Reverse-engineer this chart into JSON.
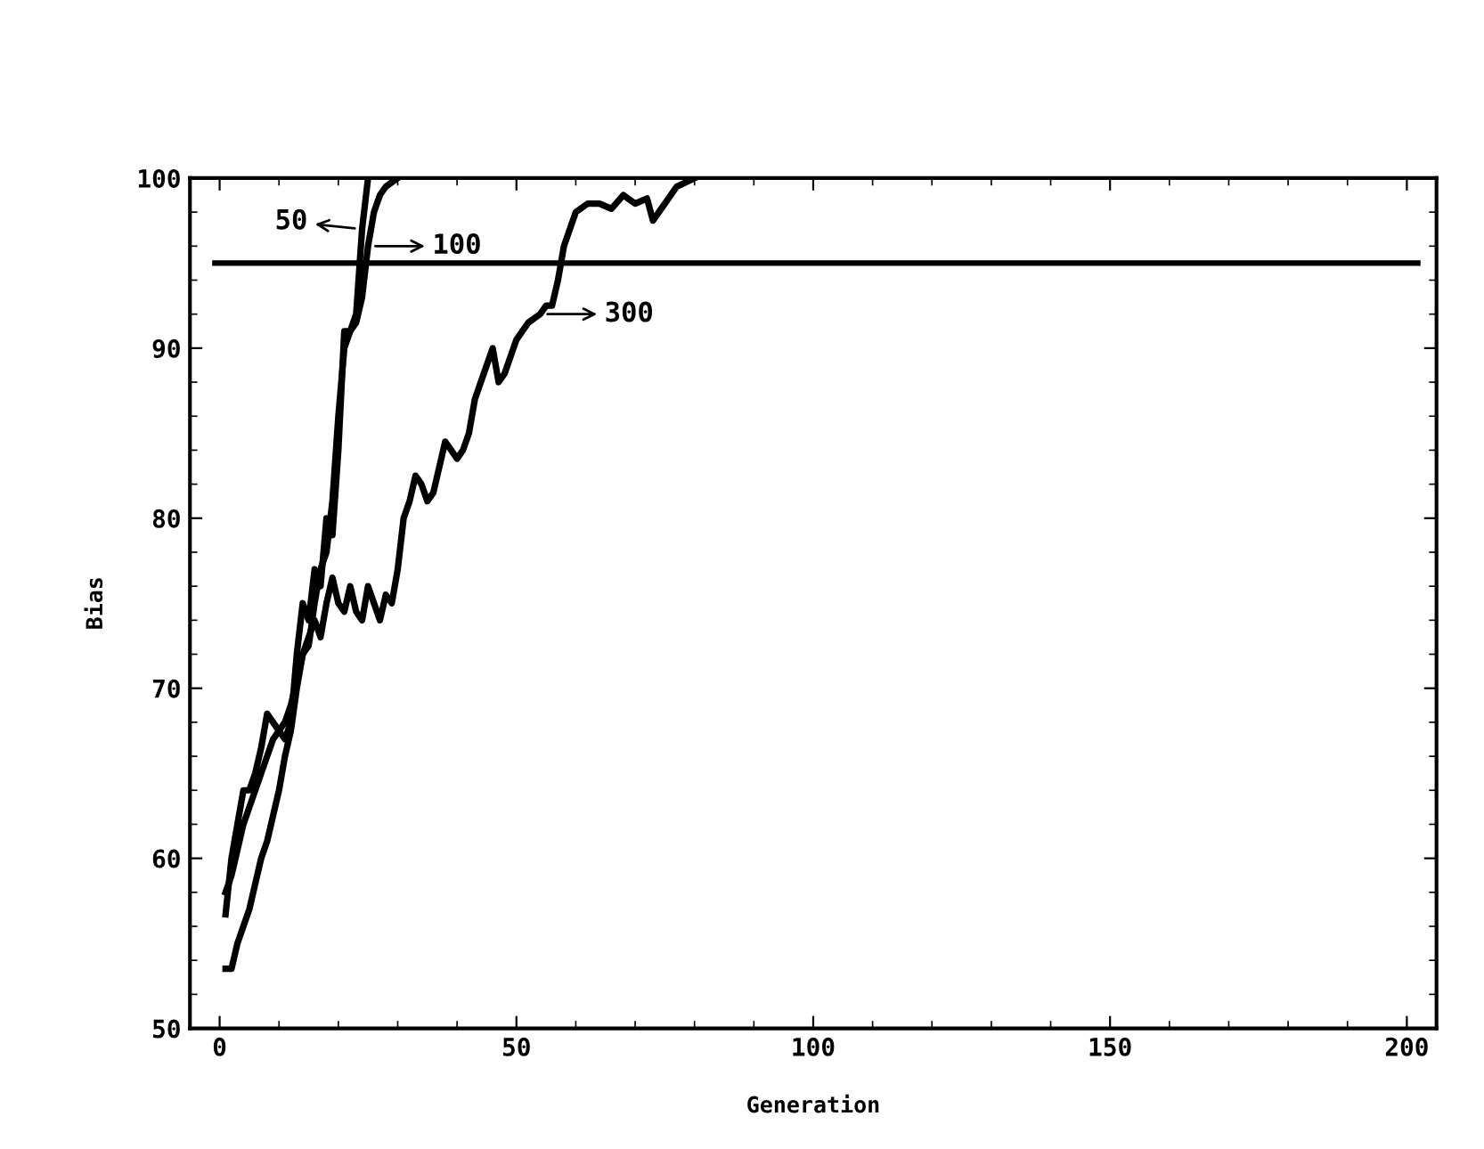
{
  "chart_data": {
    "type": "line",
    "xlabel": "Generation",
    "ylabel": "Bias",
    "xlim": [
      -5,
      205
    ],
    "ylim": [
      50,
      100
    ],
    "xticks": [
      0,
      50,
      100,
      150,
      200
    ],
    "yticks": [
      50,
      60,
      70,
      80,
      90,
      100
    ],
    "grid": false,
    "legend": "top left",
    "marker": "none",
    "line_style": "solid",
    "series": [
      {
        "name": "50",
        "color": "#000000",
        "x": [
          1,
          2,
          3,
          4,
          5,
          6,
          7,
          8,
          9,
          10,
          11,
          12,
          13,
          14,
          15,
          16,
          17,
          18,
          19,
          20,
          21,
          22,
          23,
          24,
          25
        ],
        "values": [
          56.7,
          60,
          62,
          64,
          64,
          65,
          66.5,
          68.5,
          68,
          67.5,
          67,
          68,
          72,
          75,
          74,
          77,
          76,
          80,
          79,
          84,
          91,
          91,
          92,
          97,
          100
        ]
      },
      {
        "name": "100",
        "color": "#000000",
        "x": [
          1,
          2,
          3,
          4,
          5,
          6,
          7,
          8,
          9,
          10,
          11,
          12,
          13,
          14,
          15,
          16,
          17,
          18,
          19,
          20,
          21,
          22,
          23,
          24,
          25,
          26,
          27,
          28,
          30
        ],
        "values": [
          53.5,
          53.5,
          55,
          56,
          57,
          58.5,
          60,
          61,
          62.5,
          64,
          66,
          67.5,
          70,
          72,
          72.5,
          75,
          77,
          78,
          81,
          86,
          90,
          91,
          91.5,
          93,
          96,
          98,
          99,
          99.5,
          100
        ]
      },
      {
        "name": "300",
        "color": "#000000",
        "x": [
          1,
          2,
          3,
          4,
          5,
          6,
          7,
          8,
          9,
          10,
          11,
          12,
          13,
          14,
          15,
          16,
          17,
          18,
          19,
          20,
          21,
          22,
          23,
          24,
          25,
          26,
          27,
          28,
          29,
          30,
          31,
          32,
          33,
          34,
          35,
          36,
          37,
          38,
          39,
          40,
          41,
          42,
          43,
          44,
          45,
          46,
          47,
          48,
          50,
          52,
          54,
          55,
          56,
          57,
          58,
          59,
          60,
          62,
          64,
          66,
          68,
          70,
          72,
          73,
          75,
          77,
          80
        ],
        "values": [
          58,
          59,
          60.5,
          62,
          63,
          64,
          65,
          66,
          67,
          67.5,
          68,
          69,
          70.5,
          72,
          73,
          74,
          73,
          75,
          76.5,
          75,
          74.5,
          76,
          74.5,
          74,
          76,
          75,
          74,
          75.5,
          75,
          77,
          80,
          81,
          82.5,
          82,
          81,
          81.5,
          83,
          84.5,
          84,
          83.5,
          84,
          85,
          87,
          88,
          89,
          90,
          88,
          88.5,
          90.5,
          91.5,
          92,
          92.5,
          92.5,
          94,
          96,
          97,
          98,
          98.5,
          98.5,
          98.2,
          99,
          98.5,
          98.8,
          97.5,
          98.5,
          99.5,
          100
        ]
      }
    ],
    "ref_lines": [
      {
        "axis": "y",
        "value": 95,
        "color": "#000000",
        "line_style": "solid"
      }
    ]
  }
}
